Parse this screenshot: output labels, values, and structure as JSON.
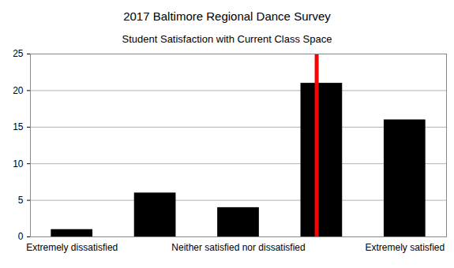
{
  "chart_data": {
    "type": "bar",
    "title": "2017 Baltimore Regional Dance Survey",
    "subtitle": "Student Satisfaction with Current Class Space",
    "categories": [
      "Extremely dissatisfied",
      null,
      "Neither satisfied nor dissatisfied",
      null,
      "Extremely satisfied"
    ],
    "values": [
      1,
      6,
      4,
      21,
      16
    ],
    "color": "#000000",
    "ylim": [
      0,
      25
    ],
    "yticks": [
      0,
      5,
      10,
      15,
      20,
      25
    ],
    "grid": true,
    "reference_line": {
      "x": 3.94,
      "color": "#ff0000"
    }
  }
}
